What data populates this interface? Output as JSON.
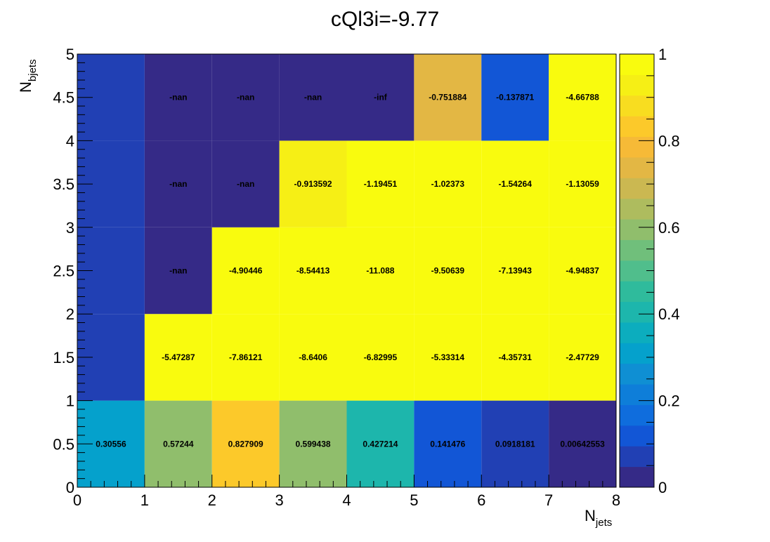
{
  "chart_data": {
    "type": "heatmap",
    "title": "cQl3i=-9.77",
    "xlabel_main": "N",
    "xlabel_sub": "jets",
    "ylabel_main": "N",
    "ylabel_sub": "bjets",
    "xlim": [
      0,
      8
    ],
    "ylim": [
      0,
      5
    ],
    "x_ticks": [
      "0",
      "1",
      "2",
      "3",
      "4",
      "5",
      "6",
      "7",
      "8"
    ],
    "y_ticks": [
      "0",
      "0.5",
      "1",
      "1.5",
      "2",
      "2.5",
      "3",
      "3.5",
      "4",
      "4.5",
      "5"
    ],
    "colorbar": {
      "range": [
        0,
        1
      ],
      "ticks": [
        "0",
        "0.2",
        "0.4",
        "0.6",
        "0.8",
        "1"
      ]
    },
    "colormap": [
      "#352a87",
      "#2140b4",
      "#1256d6",
      "#0f6ddd",
      "#0e7ed9",
      "#0f8fd3",
      "#05a1cc",
      "#0cadbe",
      "#1db6ac",
      "#2fbb9c",
      "#50be8c",
      "#70bf7b",
      "#90be6c",
      "#aebc5e",
      "#cbb851",
      "#e3b744",
      "#f6ba37",
      "#fcc92a",
      "#f8dd20",
      "#f6ef15",
      "#f9fb0e"
    ],
    "empty_color": "#352a87",
    "cells": [
      {
        "x": 0,
        "y": 0,
        "color_value": 0.30556,
        "label": "0.30556"
      },
      {
        "x": 1,
        "y": 0,
        "color_value": 0.57244,
        "label": "0.57244"
      },
      {
        "x": 2,
        "y": 0,
        "color_value": 0.827909,
        "label": "0.827909"
      },
      {
        "x": 3,
        "y": 0,
        "color_value": 0.599438,
        "label": "0.599438"
      },
      {
        "x": 4,
        "y": 0,
        "color_value": 0.427214,
        "label": "0.427214"
      },
      {
        "x": 5,
        "y": 0,
        "color_value": 0.141476,
        "label": "0.141476"
      },
      {
        "x": 6,
        "y": 0,
        "color_value": 0.0918181,
        "label": "0.0918181"
      },
      {
        "x": 7,
        "y": 0,
        "color_value": 0.00642553,
        "label": "0.00642553"
      },
      {
        "x": 0,
        "y": 1,
        "color_value": 0.05,
        "label": ""
      },
      {
        "x": 1,
        "y": 1,
        "color_value": 1,
        "label": "-5.47287"
      },
      {
        "x": 2,
        "y": 1,
        "color_value": 1,
        "label": "-7.86121"
      },
      {
        "x": 3,
        "y": 1,
        "color_value": 1,
        "label": "-8.6406"
      },
      {
        "x": 4,
        "y": 1,
        "color_value": 1,
        "label": "-6.82995"
      },
      {
        "x": 5,
        "y": 1,
        "color_value": 1,
        "label": "-5.33314"
      },
      {
        "x": 6,
        "y": 1,
        "color_value": 1,
        "label": "-4.35731"
      },
      {
        "x": 7,
        "y": 1,
        "color_value": 1,
        "label": "-2.47729"
      },
      {
        "x": 0,
        "y": 2,
        "color_value": 0.05,
        "label": ""
      },
      {
        "x": 1,
        "y": 2,
        "color_value": 0,
        "label": "-nan"
      },
      {
        "x": 2,
        "y": 2,
        "color_value": 1,
        "label": "-4.90446"
      },
      {
        "x": 3,
        "y": 2,
        "color_value": 1,
        "label": "-8.54413"
      },
      {
        "x": 4,
        "y": 2,
        "color_value": 1,
        "label": "-11.088"
      },
      {
        "x": 5,
        "y": 2,
        "color_value": 1,
        "label": "-9.50639"
      },
      {
        "x": 6,
        "y": 2,
        "color_value": 1,
        "label": "-7.13943"
      },
      {
        "x": 7,
        "y": 2,
        "color_value": 1,
        "label": "-4.94837"
      },
      {
        "x": 0,
        "y": 3,
        "color_value": 0.05,
        "label": ""
      },
      {
        "x": 1,
        "y": 3,
        "color_value": 0,
        "label": "-nan"
      },
      {
        "x": 2,
        "y": 3,
        "color_value": 0,
        "label": "-nan"
      },
      {
        "x": 3,
        "y": 3,
        "color_value": 0.913592,
        "label": "-0.913592"
      },
      {
        "x": 4,
        "y": 3,
        "color_value": 1,
        "label": "-1.19451"
      },
      {
        "x": 5,
        "y": 3,
        "color_value": 1,
        "label": "-1.02373"
      },
      {
        "x": 6,
        "y": 3,
        "color_value": 1,
        "label": "-1.54264"
      },
      {
        "x": 7,
        "y": 3,
        "color_value": 1,
        "label": "-1.13059"
      },
      {
        "x": 0,
        "y": 4,
        "color_value": 0.05,
        "label": ""
      },
      {
        "x": 1,
        "y": 4,
        "color_value": 0,
        "label": "-nan"
      },
      {
        "x": 2,
        "y": 4,
        "color_value": 0,
        "label": "-nan"
      },
      {
        "x": 3,
        "y": 4,
        "color_value": 0,
        "label": "-nan"
      },
      {
        "x": 4,
        "y": 4,
        "color_value": 0,
        "label": "-inf"
      },
      {
        "x": 5,
        "y": 4,
        "color_value": 0.751884,
        "label": "-0.751884"
      },
      {
        "x": 6,
        "y": 4,
        "color_value": 0.137871,
        "label": "-0.137871"
      },
      {
        "x": 7,
        "y": 4,
        "color_value": 1,
        "label": "-4.66788"
      }
    ]
  }
}
